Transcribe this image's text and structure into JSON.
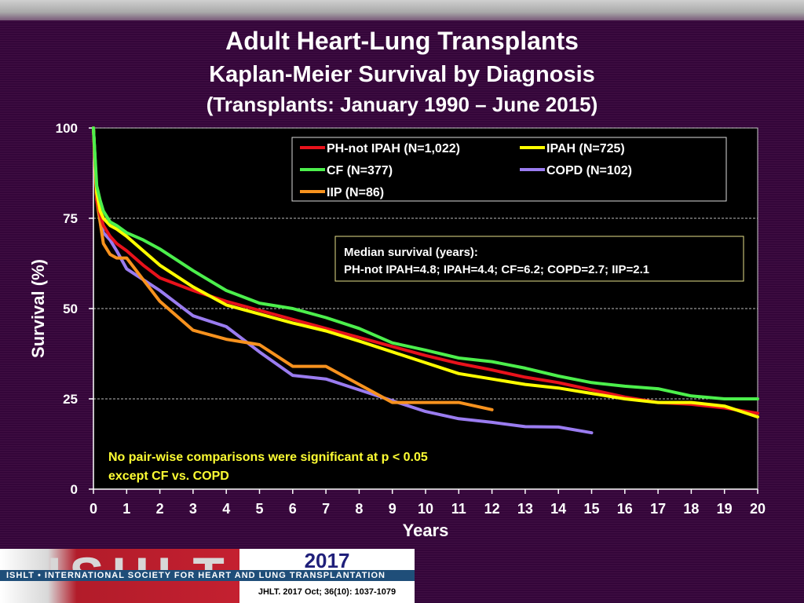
{
  "titles": {
    "main": "Adult Heart-Lung Transplants",
    "sub": "Kaplan-Meier Survival by Diagnosis",
    "period": "(Transplants: January 1990 – June 2015)"
  },
  "legend_entries": [
    "PH-not IPAH (N=1,022)",
    "IPAH (N=725)",
    "CF (N=377)",
    "COPD (N=102)",
    "IIP (N=86)"
  ],
  "median_box": {
    "heading": "Median survival (years):",
    "text": "PH-not IPAH=4.8; IPAH=4.4; CF=6.2; COPD=2.7; IIP=2.1"
  },
  "note": {
    "line1": "No pair-wise comparisons were significant at p < 0.05",
    "line2": "except CF vs. COPD"
  },
  "footer": {
    "logo": "ISHLT",
    "society": "ISHLT • INTERNATIONAL SOCIETY FOR HEART AND LUNG TRANSPLANTATION",
    "year": "2017",
    "citation": "JHLT. 2017 Oct; 36(10): 1037-1079"
  },
  "colors": {
    "background": "#3a0a3a",
    "plot_area": "#000000",
    "PH-not IPAH": "#e8121b",
    "IPAH": "#ffff00",
    "CF": "#4cef4c",
    "COPD": "#9a7cf0",
    "IIP": "#f7921e"
  },
  "chart_data": {
    "type": "line",
    "xlabel": "Years",
    "ylabel": "Survival (%)",
    "xlim": [
      0,
      20
    ],
    "ylim": [
      0,
      100
    ],
    "x_ticks": [
      0,
      1,
      2,
      3,
      4,
      5,
      6,
      7,
      8,
      9,
      10,
      11,
      12,
      13,
      14,
      15,
      16,
      17,
      18,
      19,
      20
    ],
    "y_ticks": [
      0,
      25,
      50,
      75,
      100
    ],
    "grid": "horizontal dashed",
    "legend_position": "top-right",
    "series": [
      {
        "name": "PH-not IPAH (N=1,022)",
        "x": [
          0,
          0.1,
          0.2,
          0.3,
          0.5,
          0.7,
          1,
          1.5,
          2,
          3,
          4,
          5,
          6,
          7,
          8,
          9,
          10,
          11,
          12,
          13,
          14,
          15,
          16,
          17,
          18,
          19,
          20
        ],
        "y": [
          100,
          80,
          76,
          73,
          70,
          68,
          66,
          62,
          58.5,
          55,
          52,
          49.5,
          47,
          44.5,
          42,
          39.5,
          37,
          34.8,
          33,
          31,
          29.5,
          27.5,
          25.5,
          24,
          23.5,
          22.5,
          21
        ]
      },
      {
        "name": "IPAH (N=725)",
        "x": [
          0,
          0.1,
          0.2,
          0.3,
          0.5,
          0.7,
          1,
          1.5,
          2,
          3,
          4,
          5,
          6,
          7,
          8,
          9,
          10,
          11,
          12,
          13,
          14,
          15,
          16,
          17,
          18,
          19,
          20
        ],
        "y": [
          100,
          82,
          77,
          75,
          73,
          72,
          70,
          66,
          62,
          56,
          51,
          48.5,
          46,
          43.8,
          41,
          38,
          35,
          32,
          30.5,
          29,
          28,
          26.5,
          25,
          24,
          24,
          23,
          20
        ]
      },
      {
        "name": "CF (N=377)",
        "x": [
          0,
          0.1,
          0.2,
          0.3,
          0.5,
          0.7,
          1,
          1.5,
          2,
          3,
          4,
          5,
          6,
          7,
          8,
          9,
          10,
          11,
          12,
          13,
          14,
          15,
          16,
          17,
          18,
          19,
          20
        ],
        "y": [
          100,
          84,
          80,
          77,
          74,
          73,
          71,
          69,
          66.5,
          60.5,
          55,
          51.5,
          50,
          47.5,
          44.5,
          40.5,
          38.5,
          36.3,
          35.3,
          33.5,
          31.3,
          29.5,
          28.5,
          27.8,
          25.8,
          25,
          25
        ]
      },
      {
        "name": "COPD (N=102)",
        "x": [
          0,
          0.1,
          0.2,
          0.3,
          0.5,
          0.7,
          1,
          1.5,
          2,
          3,
          4,
          5,
          6,
          7,
          8,
          9,
          10,
          11,
          12,
          13,
          14,
          15
        ],
        "y": [
          100,
          82,
          75,
          71,
          69,
          66,
          61,
          58,
          55,
          48,
          45,
          38,
          31.5,
          30.5,
          27.5,
          24.5,
          21.5,
          19.5,
          18.5,
          17.3,
          17.2,
          15.6
        ]
      },
      {
        "name": "IIP (N=86)",
        "x": [
          0,
          0.1,
          0.2,
          0.3,
          0.5,
          0.7,
          1,
          1.5,
          2,
          3,
          4,
          5,
          6,
          7,
          8,
          9,
          10,
          11,
          12
        ],
        "y": [
          100,
          80,
          74,
          68,
          65,
          64,
          64,
          58,
          52,
          44,
          41.5,
          40,
          34,
          34,
          29,
          24,
          24,
          24,
          22
        ]
      }
    ]
  }
}
